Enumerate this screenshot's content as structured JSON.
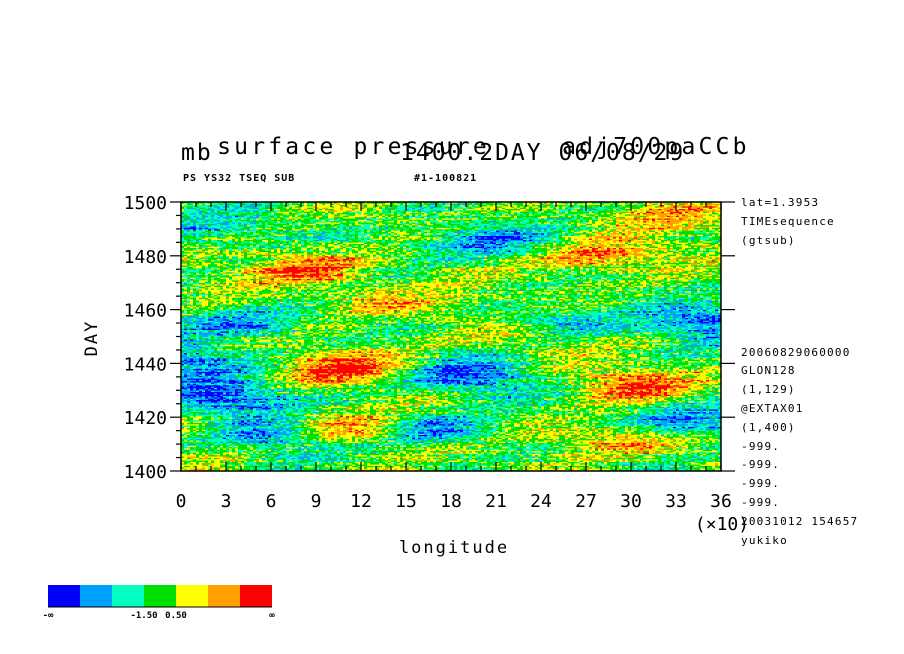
{
  "header": {
    "title_left": "surface pressure",
    "title_right": "adj700paCCb",
    "units": "mb",
    "time_label": "1400.2DAY 06/08/29",
    "subtitle_left": "PS YS32 TSEQ SUB",
    "subtitle_right": "#1-100821"
  },
  "info_right_top": [
    "lat=1.3953",
    "TIMEsequence",
    "(gtsub)"
  ],
  "info_right_bottom": [
    "20060829060000",
    "GLON128",
    "(1,129)",
    "@EXTAX01",
    "(1,400)",
    "-999.",
    "-999.",
    "-999.",
    "-999.",
    "20031012 154657",
    "yukiko"
  ],
  "colorbar": {
    "colors": [
      "#0000ff",
      "#00a0ff",
      "#00ffc0",
      "#00e000",
      "#ffff00",
      "#ffa000",
      "#ff0000"
    ],
    "labels": [
      "-∞",
      "-1.50",
      "0.50",
      "∞"
    ]
  },
  "chart_data": {
    "type": "heatmap",
    "title": "surface pressure",
    "xlabel": "longitude",
    "ylabel": "DAY",
    "x_scale_label": "(×10)",
    "xlim": [
      0,
      36
    ],
    "ylim": [
      1400,
      1500
    ],
    "x_ticks": [
      "0",
      "3",
      "6",
      "9",
      "12",
      "15",
      "18",
      "21",
      "24",
      "27",
      "30",
      "33",
      "36"
    ],
    "y_ticks": [
      "1400",
      "1420",
      "1440",
      "1460",
      "1480",
      "1500"
    ],
    "color_levels": [
      "-∞",
      "-1.50",
      "0.50",
      "∞"
    ],
    "colors": [
      "#0000ff",
      "#00a0ff",
      "#00ffc0",
      "#00e000",
      "#ffff00",
      "#ffa000",
      "#ff0000"
    ]
  }
}
